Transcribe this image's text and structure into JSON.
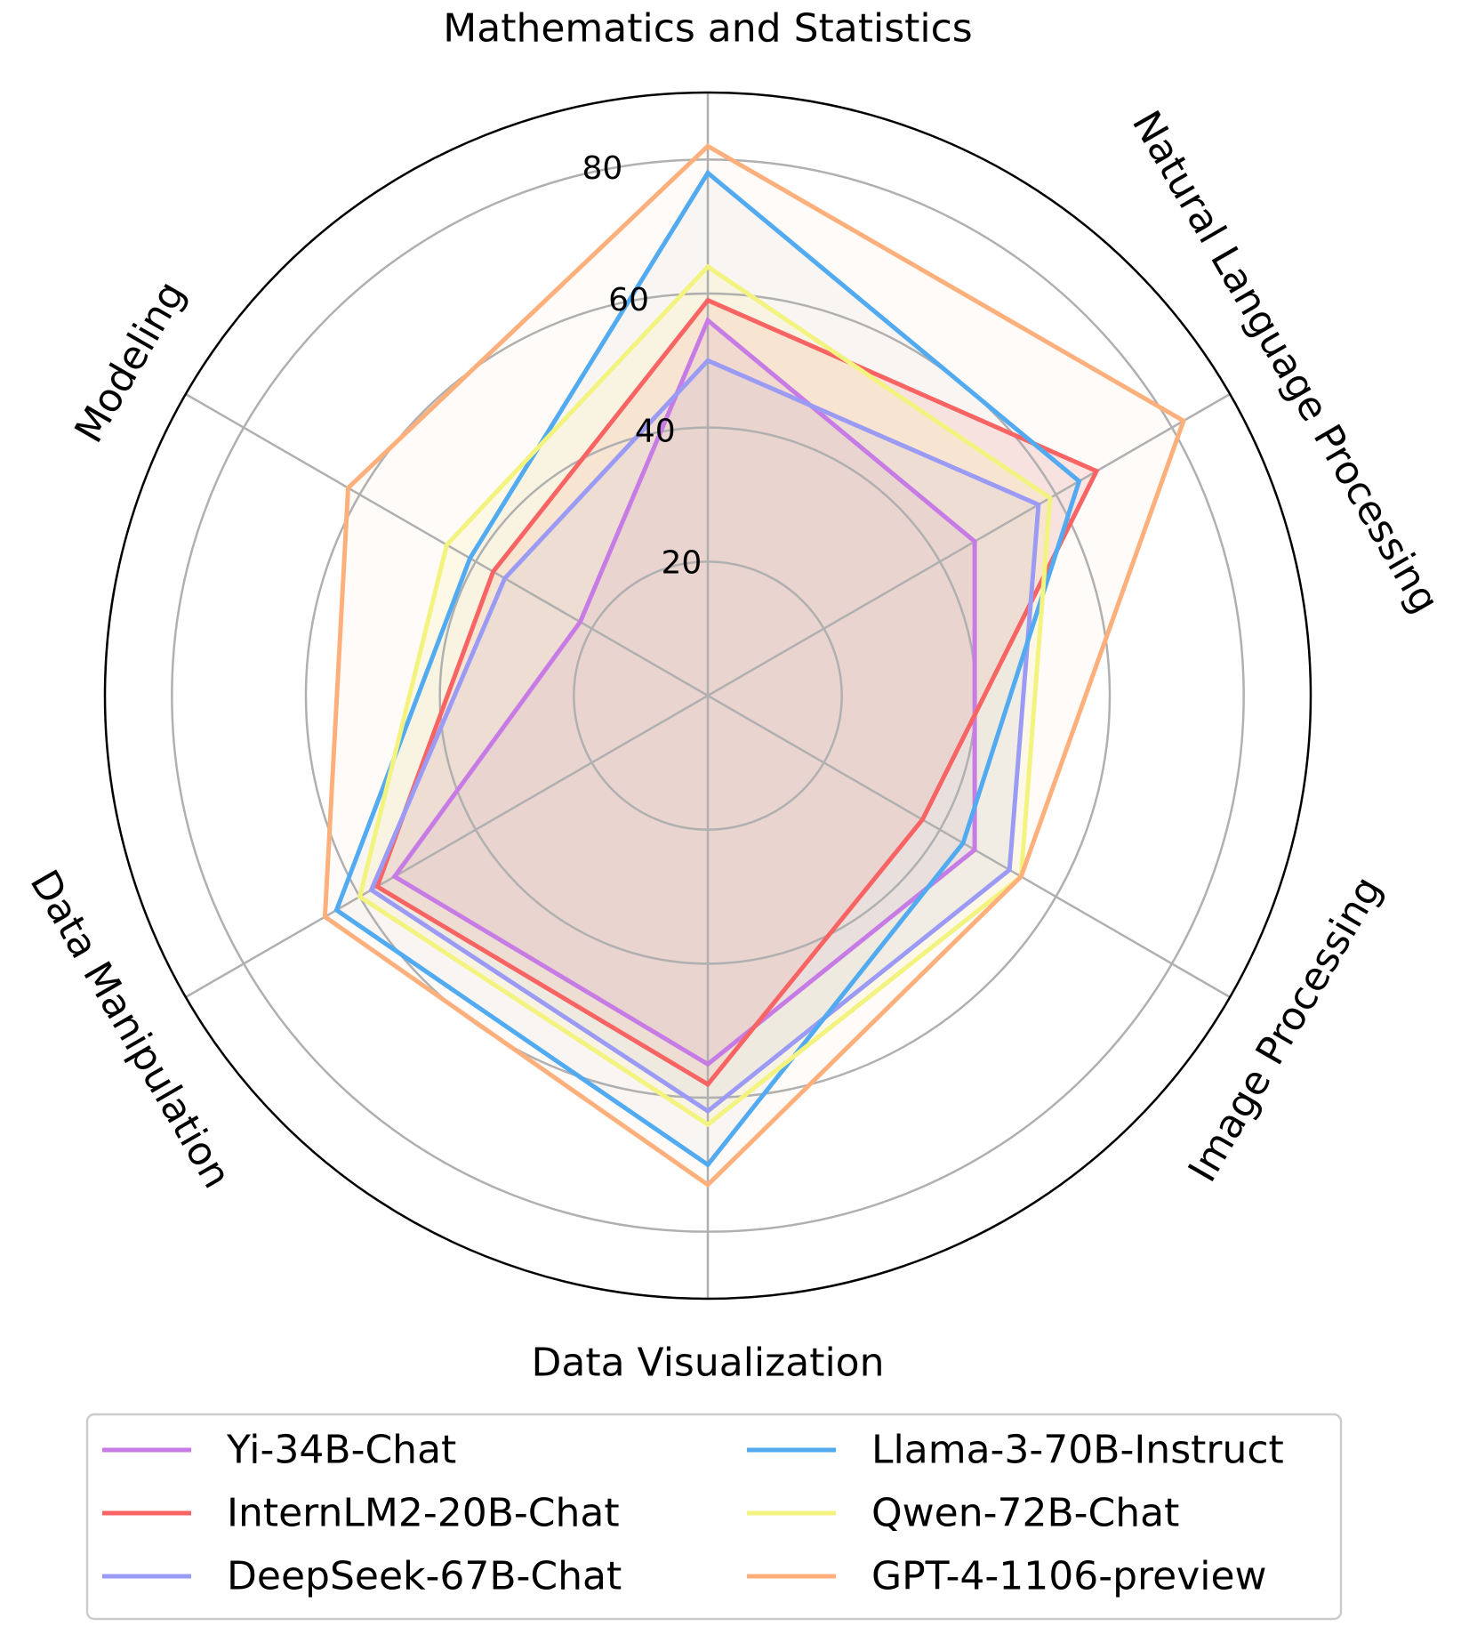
{
  "chart_data": {
    "type": "radar",
    "categories": [
      "Mathematics and Statistics",
      "Natural Language Processing",
      "Image Processing",
      "Data Visualization",
      "Data Manipulation",
      "Modeling"
    ],
    "rlim": [
      0,
      90
    ],
    "radial_ticks": [
      20,
      40,
      60,
      80
    ],
    "radial_tick_labels": [
      "20",
      "40",
      "60",
      "80"
    ],
    "grid": true,
    "series": [
      {
        "name": "Yi-34B-Chat",
        "color": "#c77ce5",
        "values": [
          56,
          46,
          46,
          55,
          54,
          22
        ]
      },
      {
        "name": "InternLM2-20B-Chat",
        "color": "#f86464",
        "values": [
          59,
          67,
          37,
          58,
          57,
          37
        ]
      },
      {
        "name": "DeepSeek-67B-Chat",
        "color": "#9b9bf5",
        "values": [
          50,
          57,
          52,
          62,
          58,
          35
        ]
      },
      {
        "name": "Llama-3-70B-Instruct",
        "color": "#52aaf0",
        "values": [
          78,
          64,
          44,
          70,
          64,
          41
        ]
      },
      {
        "name": "Qwen-72B-Chat",
        "color": "#f3f380",
        "values": [
          64,
          59,
          54,
          64,
          60,
          45
        ]
      },
      {
        "name": "GPT-4-1106-preview",
        "color": "#feb07c",
        "values": [
          82,
          82,
          54,
          73,
          66,
          62
        ]
      }
    ],
    "fill_colors": {
      "Llama-3-70B-Instruct": "#d9d9d9",
      "GPT-4-1106-preview": "#fdeadd"
    },
    "legend": {
      "placement": "bottom",
      "columns": 2,
      "entries": [
        "Yi-34B-Chat",
        "InternLM2-20B-Chat",
        "DeepSeek-67B-Chat",
        "Llama-3-70B-Instruct",
        "Qwen-72B-Chat",
        "GPT-4-1106-preview"
      ]
    }
  }
}
